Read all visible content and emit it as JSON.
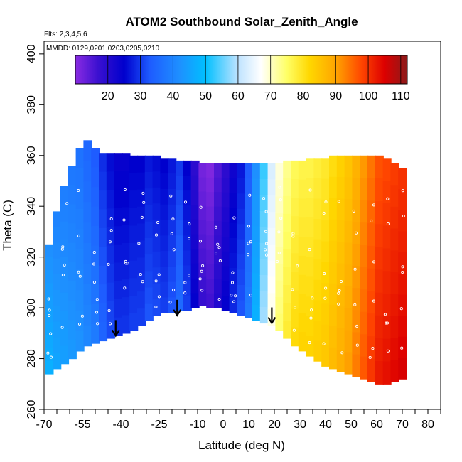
{
  "chart_data": {
    "type": "heatmap",
    "title": "ATOM2 Southbound Solar_Zenith_Angle",
    "subtitle_flights": "Flts: 2,3,4,5,6",
    "subtitle_dates": "MMDD: 0129,0201,0203,0205,0210",
    "xlabel": "Latitude (deg N)",
    "ylabel": "Theta (C)",
    "xlim": [
      -70,
      85
    ],
    "ylim": [
      260,
      405
    ],
    "x_ticks_major": [
      -70,
      -55,
      -40,
      -25,
      -10,
      0,
      10,
      20,
      30,
      40,
      50,
      60,
      70,
      80
    ],
    "x_tick_labels": [
      "-70",
      "-55",
      "-40",
      "-25",
      "-10",
      "0",
      "10",
      "20",
      "30",
      "40",
      "50",
      "60",
      "70",
      "80"
    ],
    "x_ticks_minor": [
      -65,
      -60,
      -50,
      -45,
      -35,
      -30,
      -20,
      -15,
      -5,
      5,
      15,
      25,
      35,
      45,
      55,
      65,
      75,
      85
    ],
    "y_ticks": [
      260,
      280,
      300,
      320,
      340,
      360,
      380,
      400
    ],
    "y_tick_labels": [
      "260",
      "280",
      "300",
      "320",
      "340",
      "360",
      "380",
      "400"
    ],
    "colorbar": {
      "min": 10,
      "max": 112,
      "ticks": [
        20,
        30,
        40,
        50,
        60,
        70,
        80,
        90,
        100,
        110
      ],
      "tick_labels": [
        "20",
        "30",
        "40",
        "50",
        "60",
        "70",
        "80",
        "90",
        "100",
        "110"
      ],
      "stops": [
        {
          "value": 10,
          "color": "#8a2be2"
        },
        {
          "value": 17,
          "color": "#3a10d0"
        },
        {
          "value": 25,
          "color": "#0000cd"
        },
        {
          "value": 33,
          "color": "#1e5cff"
        },
        {
          "value": 42,
          "color": "#1e90ff"
        },
        {
          "value": 50,
          "color": "#00bfff"
        },
        {
          "value": 60,
          "color": "#bfe3ff"
        },
        {
          "value": 67,
          "color": "#ffffff"
        },
        {
          "value": 75,
          "color": "#ffff66"
        },
        {
          "value": 82,
          "color": "#ffd700"
        },
        {
          "value": 90,
          "color": "#ffa500"
        },
        {
          "value": 98,
          "color": "#ff4500"
        },
        {
          "value": 105,
          "color": "#dd0000"
        },
        {
          "value": 112,
          "color": "#8b1a1a"
        }
      ]
    },
    "field_columns": [
      {
        "lat": -68,
        "bottom": 274,
        "top": 325,
        "sza": 45
      },
      {
        "lat": -65,
        "bottom": 276,
        "top": 338,
        "sza": 43
      },
      {
        "lat": -62,
        "bottom": 278,
        "top": 348,
        "sza": 42
      },
      {
        "lat": -59,
        "bottom": 280,
        "top": 356,
        "sza": 41
      },
      {
        "lat": -56,
        "bottom": 283,
        "top": 363,
        "sza": 40
      },
      {
        "lat": -53,
        "bottom": 285,
        "top": 366,
        "sza": 38
      },
      {
        "lat": -50,
        "bottom": 286,
        "top": 363,
        "sza": 36
      },
      {
        "lat": -47,
        "bottom": 287,
        "top": 361,
        "sza": 32
      },
      {
        "lat": -44,
        "bottom": 288,
        "top": 361,
        "sza": 29
      },
      {
        "lat": -41,
        "bottom": 289,
        "top": 361,
        "sza": 27
      },
      {
        "lat": -38,
        "bottom": 290,
        "top": 361,
        "sza": 27
      },
      {
        "lat": -35,
        "bottom": 291,
        "top": 360,
        "sza": 28
      },
      {
        "lat": -32,
        "bottom": 293,
        "top": 360,
        "sza": 28
      },
      {
        "lat": -29,
        "bottom": 295,
        "top": 360,
        "sza": 30
      },
      {
        "lat": -26,
        "bottom": 297,
        "top": 360,
        "sza": 29
      },
      {
        "lat": -23,
        "bottom": 298,
        "top": 359,
        "sza": 28
      },
      {
        "lat": -20,
        "bottom": 298,
        "top": 359,
        "sza": 30
      },
      {
        "lat": -17,
        "bottom": 299,
        "top": 358,
        "sza": 33
      },
      {
        "lat": -14,
        "bottom": 299,
        "top": 358,
        "sza": 28
      },
      {
        "lat": -11,
        "bottom": 300,
        "top": 358,
        "sza": 22
      },
      {
        "lat": -8,
        "bottom": 301,
        "top": 357,
        "sza": 15
      },
      {
        "lat": -5,
        "bottom": 300,
        "top": 357,
        "sza": 14
      },
      {
        "lat": -2,
        "bottom": 300,
        "top": 357,
        "sza": 18
      },
      {
        "lat": 1,
        "bottom": 299,
        "top": 357,
        "sza": 22
      },
      {
        "lat": 4,
        "bottom": 298,
        "top": 357,
        "sza": 26
      },
      {
        "lat": 7,
        "bottom": 297,
        "top": 357,
        "sza": 30
      },
      {
        "lat": 10,
        "bottom": 296,
        "top": 357,
        "sza": 36
      },
      {
        "lat": 13,
        "bottom": 295,
        "top": 357,
        "sza": 45
      },
      {
        "lat": 16,
        "bottom": 294,
        "top": 357,
        "sza": 56
      },
      {
        "lat": 19,
        "bottom": 293,
        "top": 357,
        "sza": 66
      },
      {
        "lat": 22,
        "bottom": 291,
        "top": 357,
        "sza": 72
      },
      {
        "lat": 25,
        "bottom": 288,
        "top": 358,
        "sza": 76
      },
      {
        "lat": 28,
        "bottom": 285,
        "top": 358,
        "sza": 79
      },
      {
        "lat": 31,
        "bottom": 283,
        "top": 358,
        "sza": 80
      },
      {
        "lat": 34,
        "bottom": 281,
        "top": 359,
        "sza": 80
      },
      {
        "lat": 37,
        "bottom": 279,
        "top": 359,
        "sza": 81
      },
      {
        "lat": 40,
        "bottom": 277,
        "top": 359,
        "sza": 82
      },
      {
        "lat": 43,
        "bottom": 276,
        "top": 360,
        "sza": 84
      },
      {
        "lat": 46,
        "bottom": 275,
        "top": 360,
        "sza": 86
      },
      {
        "lat": 49,
        "bottom": 274,
        "top": 360,
        "sza": 88
      },
      {
        "lat": 52,
        "bottom": 273,
        "top": 360,
        "sza": 91
      },
      {
        "lat": 55,
        "bottom": 272,
        "top": 360,
        "sza": 94
      },
      {
        "lat": 58,
        "bottom": 271,
        "top": 360,
        "sza": 97
      },
      {
        "lat": 61,
        "bottom": 270,
        "top": 360,
        "sza": 100
      },
      {
        "lat": 64,
        "bottom": 270,
        "top": 359,
        "sza": 101
      },
      {
        "lat": 67,
        "bottom": 271,
        "top": 357,
        "sza": 102
      },
      {
        "lat": 70,
        "bottom": 272,
        "top": 355,
        "sza": 103
      }
    ],
    "arrows": [
      {
        "lat": -42,
        "theta": 289
      },
      {
        "lat": -18,
        "theta": 297
      },
      {
        "lat": 19,
        "theta": 294
      }
    ]
  }
}
